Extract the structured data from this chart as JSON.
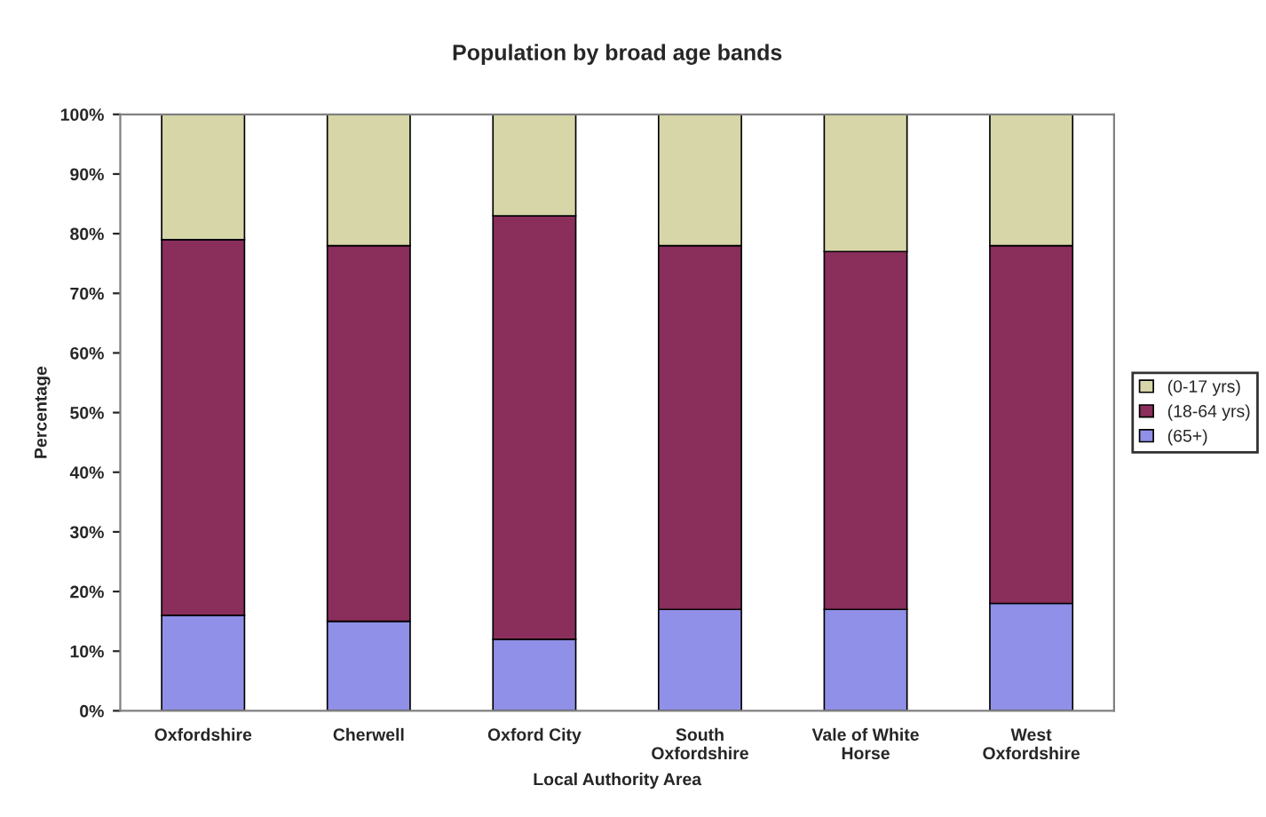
{
  "chart_data": {
    "type": "bar",
    "stacked": true,
    "title": "Population by broad age bands",
    "xlabel": "Local Authority Area",
    "ylabel": "Percentage",
    "categories": [
      "Oxfordshire",
      "Cherwell",
      "Oxford City",
      "South Oxfordshire",
      "Vale of White Horse",
      "West Oxfordshire"
    ],
    "series": [
      {
        "name": "(65+)",
        "color": "#9090e8",
        "values": [
          16,
          15,
          12,
          17,
          17,
          18
        ]
      },
      {
        "name": "(18-64 yrs)",
        "color": "#8a2e5c",
        "values": [
          63,
          63,
          71,
          61,
          60,
          60
        ]
      },
      {
        "name": "(0-17 yrs)",
        "color": "#d6d6a8",
        "values": [
          21,
          22,
          17,
          22,
          23,
          22
        ]
      }
    ],
    "ylim": [
      0,
      100
    ],
    "yticks": [
      {
        "value": 0,
        "label": "0%"
      },
      {
        "value": 10,
        "label": "10%"
      },
      {
        "value": 20,
        "label": "20%"
      },
      {
        "value": 30,
        "label": "30%"
      },
      {
        "value": 40,
        "label": "40%"
      },
      {
        "value": 50,
        "label": "50%"
      },
      {
        "value": 60,
        "label": "60%"
      },
      {
        "value": 70,
        "label": "70%"
      },
      {
        "value": 80,
        "label": "80%"
      },
      {
        "value": 90,
        "label": "90%"
      },
      {
        "value": 100,
        "label": "100%"
      }
    ],
    "legend": "right",
    "grid": false
  }
}
